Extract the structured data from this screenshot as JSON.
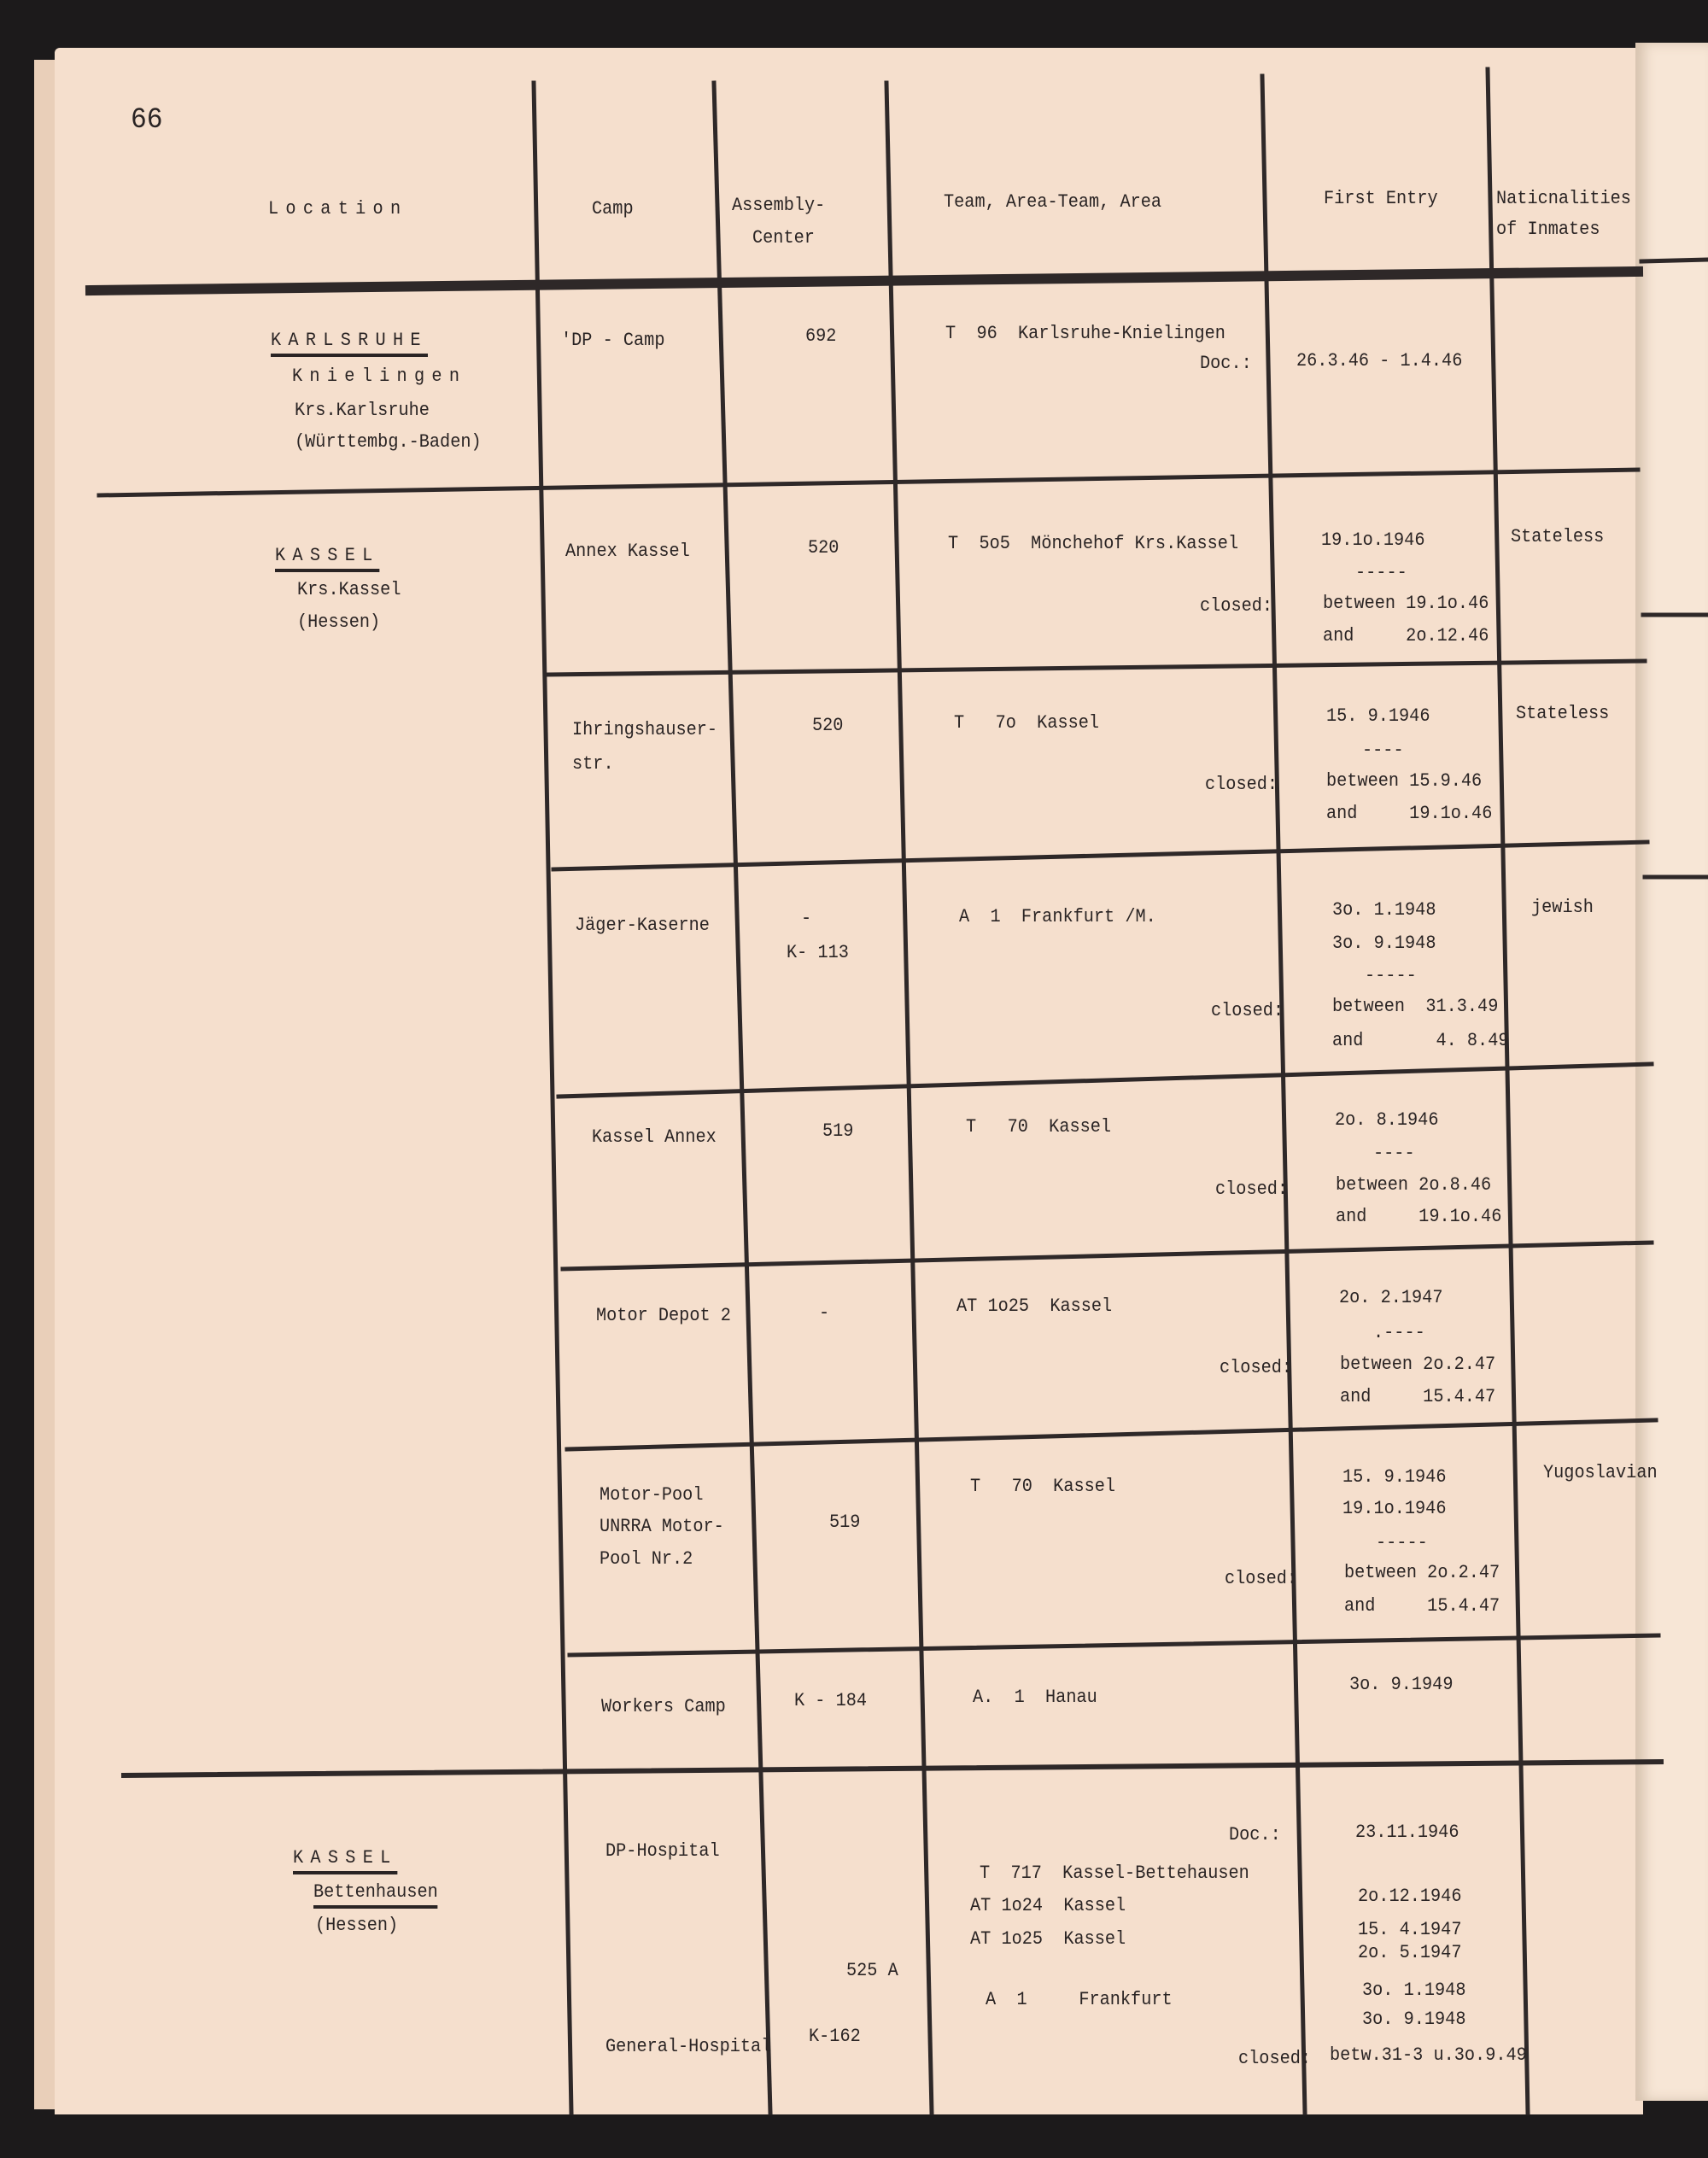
{
  "page_number": "66",
  "header": {
    "location": "Location",
    "camp": "Camp",
    "assembly_center": [
      "Assembly-",
      "Center"
    ],
    "team": "Team, Area-Team, Area",
    "first_entry": "First Entry",
    "nationalities": [
      "Naticnalities",
      "of Inmates"
    ]
  },
  "rows": [
    {
      "location": [
        "KARLSRUHE",
        "Knielingen",
        "Krs.Karlsruhe",
        "(Württembg.-Baden)"
      ],
      "camp": [
        "'DP - Camp"
      ],
      "assembly": [
        "692"
      ],
      "team": [
        "T  96  Karlsruhe-Knielingen"
      ],
      "team_label": "Doc.:",
      "first_entry": [
        "26.3.46 - 1.4.46"
      ],
      "nationality": ""
    },
    {
      "location": [
        "KASSEL",
        "Krs.Kassel",
        "(Hessen)"
      ],
      "camp": [
        "Annex Kassel"
      ],
      "assembly": [
        "520"
      ],
      "team": [
        "T  5o5  Mönchehof Krs.Kassel"
      ],
      "team_label": "closed:",
      "first_entry": [
        "19.1o.1946",
        "-----",
        "between 19.1o.46",
        "and     2o.12.46"
      ],
      "nationality": "Stateless"
    },
    {
      "camp": [
        "Ihringshauser-",
        "str."
      ],
      "assembly": [
        "520"
      ],
      "team": [
        "T   7o  Kassel"
      ],
      "team_label": "closed:",
      "first_entry": [
        "15. 9.1946",
        "----",
        "between 15.9.46",
        "and     19.1o.46"
      ],
      "nationality": "Stateless"
    },
    {
      "camp": [
        "Jäger-Kaserne"
      ],
      "assembly": [
        "-",
        "K- 113"
      ],
      "team": [
        "A  1  Frankfurt /M."
      ],
      "team_label": "closed:",
      "first_entry": [
        "3o. 1.1948",
        "3o. 9.1948",
        "-----",
        "between  31.3.49",
        "and       4. 8.49"
      ],
      "nationality": "jewish"
    },
    {
      "camp": [
        "Kassel Annex"
      ],
      "assembly": [
        "519"
      ],
      "team": [
        "T   70  Kassel"
      ],
      "team_label": "closed:",
      "first_entry": [
        "2o. 8.1946",
        "----",
        "between 2o.8.46",
        "and     19.1o.46"
      ],
      "nationality": ""
    },
    {
      "camp": [
        "Motor Depot 2"
      ],
      "assembly": [
        "-"
      ],
      "team": [
        "AT 1o25  Kassel"
      ],
      "team_label": "closed:",
      "first_entry": [
        "2o. 2.1947",
        ".----",
        "between 2o.2.47",
        "and     15.4.47"
      ],
      "nationality": ""
    },
    {
      "camp": [
        "Motor-Pool",
        "UNRRA Motor-",
        "Pool Nr.2"
      ],
      "assembly": [
        "519"
      ],
      "team": [
        "T   70  Kassel"
      ],
      "team_label": "closed:",
      "first_entry": [
        "15. 9.1946",
        "19.1o.1946",
        "-----",
        "between 2o.2.47",
        "and     15.4.47"
      ],
      "nationality": "Yugoslavian"
    },
    {
      "camp": [
        "Workers Camp"
      ],
      "assembly": [
        "K - 184"
      ],
      "team": [
        "A.  1  Hanau"
      ],
      "first_entry": [
        "3o. 9.1949"
      ],
      "nationality": ""
    },
    {
      "location": [
        "KASSEL",
        "Bettenhausen",
        "(Hessen)"
      ],
      "camp": [
        "DP-Hospital",
        "General-Hospital"
      ],
      "assembly": [
        "525 A",
        "K-162"
      ],
      "team_doc_label": "Doc.:",
      "team": [
        "T  717  Kassel-Bettehausen",
        "AT 1o24  Kassel",
        "AT 1o25  Kassel",
        "A  1     Frankfurt"
      ],
      "team_label": "closed:",
      "first_entry": [
        "23.11.1946",
        "2o.12.1946",
        "15. 4.1947",
        "2o. 5.1947",
        "3o. 1.1948",
        "3o. 9.1948",
        "betw.31-3 u.3o.9.49"
      ],
      "nationality": ""
    }
  ]
}
